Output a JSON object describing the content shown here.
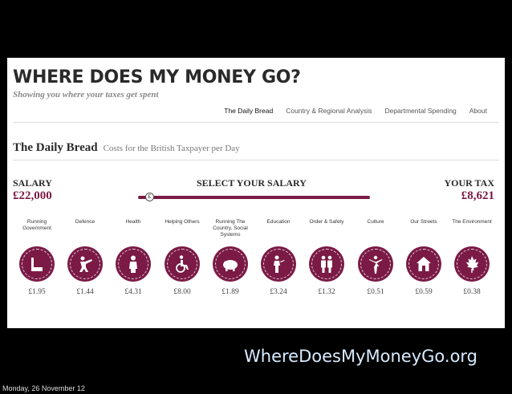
{
  "site": {
    "title": "WHERE DOES MY MONEY GO?",
    "tagline": "Showing you where your taxes get spent"
  },
  "nav": {
    "items": [
      {
        "label": "The Daily Bread",
        "active": true
      },
      {
        "label": "Country & Regional Analysis",
        "active": false
      },
      {
        "label": "Departmental Spending",
        "active": false
      },
      {
        "label": "About",
        "active": false
      }
    ]
  },
  "section": {
    "title": "The Daily Bread",
    "subtitle": "Costs for the British Taxpayer per Day"
  },
  "salary": {
    "label": "SALARY",
    "value": "£22,000",
    "select_label": "SELECT YOUR SALARY",
    "knob_symbol": "£",
    "tax_label": "YOUR TAX",
    "tax_value": "£8,621"
  },
  "categories": [
    {
      "label": "Running Government",
      "icon": "building-icon",
      "amount": "£1.95"
    },
    {
      "label": "Defence",
      "icon": "soldier-icon",
      "amount": "£1.44"
    },
    {
      "label": "Health",
      "icon": "nurse-icon",
      "amount": "£4.31"
    },
    {
      "label": "Helping Others",
      "icon": "wheelchair-icon",
      "amount": "£8.00"
    },
    {
      "label": "Running The Country, Social Systems",
      "icon": "piggy-bank-icon",
      "amount": "£1.89"
    },
    {
      "label": "Education",
      "icon": "teacher-icon",
      "amount": "£3.24"
    },
    {
      "label": "Order & Safety",
      "icon": "police-icon",
      "amount": "£1.32"
    },
    {
      "label": "Culture",
      "icon": "ballerina-icon",
      "amount": "£0.51"
    },
    {
      "label": "Our Streets",
      "icon": "house-icon",
      "amount": "£0.59"
    },
    {
      "label": "The Environment",
      "icon": "leaf-icon",
      "amount": "£0.38"
    }
  ],
  "slide_footer": {
    "url": "WhereDoesMyMoneyGo.org",
    "date": "Monday, 26 November 12"
  },
  "colors": {
    "accent": "#7a1a45",
    "background": "#000000",
    "url_text": "#d7ebff"
  }
}
